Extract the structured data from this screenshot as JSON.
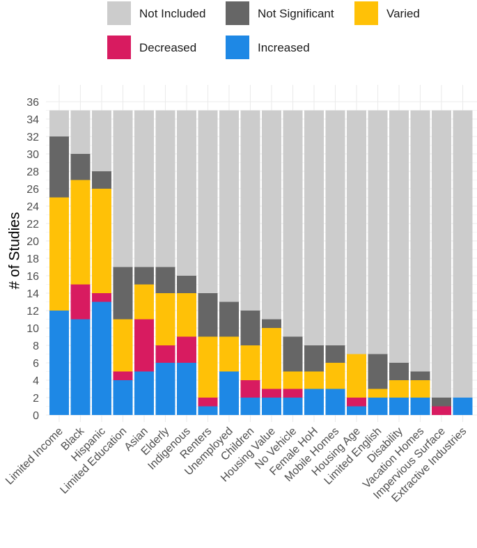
{
  "chart_data": {
    "type": "bar",
    "stacked": true,
    "title": "",
    "xlabel": "",
    "ylabel": "# of Studies",
    "ylim": [
      0,
      36
    ],
    "yticks": [
      0,
      2,
      4,
      6,
      8,
      10,
      12,
      14,
      16,
      18,
      20,
      22,
      24,
      26,
      28,
      30,
      32,
      34,
      36
    ],
    "grid": true,
    "legend_position": "top",
    "categories": [
      "Limited Income",
      "Black",
      "Hispanic",
      "Limited Education",
      "Asian",
      "Elderly",
      "Indigenous",
      "Renters",
      "Unemployed",
      "Children",
      "Housing Value",
      "No Vehicle",
      "Female HoH",
      "Mobile Homes",
      "Housing Age",
      "Limited English",
      "Disability",
      "Vacation Homes",
      "Impervious Surface",
      "Extractive Industries"
    ],
    "series": [
      {
        "name": "Increased",
        "color": "#1e88e5",
        "values": [
          12,
          11,
          13,
          4,
          5,
          6,
          6,
          1,
          5,
          2,
          2,
          2,
          3,
          3,
          1,
          2,
          2,
          2,
          0,
          2
        ]
      },
      {
        "name": "Decreased",
        "color": "#d81b60",
        "values": [
          0,
          4,
          1,
          1,
          6,
          2,
          3,
          1,
          0,
          2,
          1,
          1,
          0,
          0,
          1,
          0,
          0,
          0,
          1,
          0
        ]
      },
      {
        "name": "Varied",
        "color": "#ffc107",
        "values": [
          13,
          12,
          12,
          6,
          4,
          6,
          5,
          7,
          4,
          4,
          7,
          2,
          2,
          3,
          5,
          1,
          2,
          2,
          0,
          0
        ]
      },
      {
        "name": "Not Significant",
        "color": "#666666",
        "values": [
          7,
          3,
          2,
          6,
          2,
          3,
          2,
          5,
          4,
          4,
          1,
          4,
          3,
          2,
          0,
          4,
          2,
          1,
          1,
          0
        ]
      },
      {
        "name": "Not Included",
        "color": "#cccccc",
        "values": [
          3,
          5,
          7,
          18,
          18,
          18,
          19,
          21,
          22,
          23,
          24,
          26,
          27,
          27,
          28,
          28,
          29,
          30,
          33,
          33
        ]
      }
    ],
    "legend": {
      "row1": [
        "Not Included",
        "Not Significant",
        "Varied"
      ],
      "row2": [
        "Decreased",
        "Increased"
      ]
    }
  }
}
